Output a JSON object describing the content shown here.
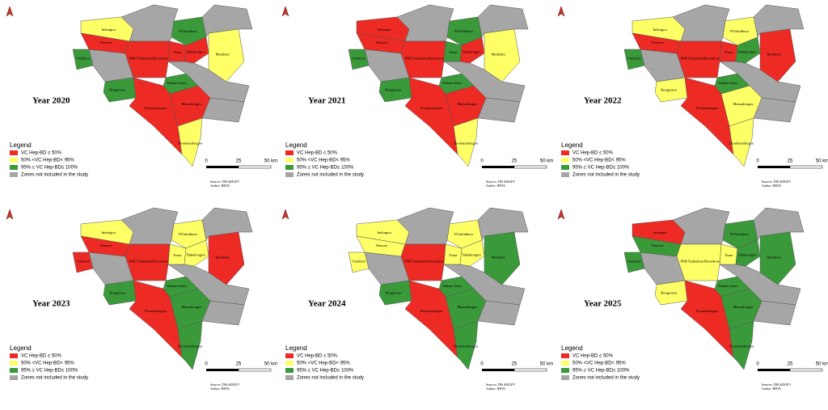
{
  "legend": {
    "title": "Legend",
    "items": [
      {
        "label": "VC Hep-BD ≤ 50%",
        "color": "#ee2a24"
      },
      {
        "label": "50% <VC Hep-BD< 95%",
        "color": "#ffff66"
      },
      {
        "label": "95% ≤ VC Hep-BD≤ 100%",
        "color": "#3a9a3a"
      },
      {
        "label": "Zones not included in the study",
        "color": "#a6a6a6"
      }
    ]
  },
  "scale": {
    "labels": [
      "0",
      "25",
      "50 km"
    ]
  },
  "source": {
    "lines": [
      "Sources: DIS &DGPV",
      "Author: HBTA"
    ]
  },
  "regions": [
    "Indougou",
    "Nassoro",
    "Ouéléssé",
    "N'Golokhoro",
    "Tiona",
    "Dakakougou",
    "Madinani",
    "PMI/Yankadine/Bourekore",
    "Bougousso",
    "Ndiana Sesso",
    "Fermandougou",
    "Massadougou",
    "Dioulatiedougou"
  ],
  "panels": [
    {
      "title": "Year 2020",
      "region_colors": [
        "#ffff66",
        "#ee2a24",
        "#3a9a3a",
        "#3a9a3a",
        "#ee2a24",
        "#ee2a24",
        "#ffff66",
        "#ee2a24",
        "#3a9a3a",
        "#3a9a3a",
        "#ee2a24",
        "#ee2a24",
        "#ffff66"
      ]
    },
    {
      "title": "Year 2021",
      "region_colors": [
        "#ee2a24",
        "#ee2a24",
        "#3a9a3a",
        "#3a9a3a",
        "#3a9a3a",
        "#ee2a24",
        "#ffff66",
        "#ee2a24",
        "#3a9a3a",
        "#3a9a3a",
        "#ee2a24",
        "#ee2a24",
        "#ffff66"
      ]
    },
    {
      "title": "Year 2022",
      "region_colors": [
        "#ffff66",
        "#ee2a24",
        "#3a9a3a",
        "#ffff66",
        "#ee2a24",
        "#3a9a3a",
        "#ee2a24",
        "#ee2a24",
        "#ffff66",
        "#3a9a3a",
        "#ee2a24",
        "#ffff66",
        "#ffff66"
      ]
    },
    {
      "title": "Year 2023",
      "region_colors": [
        "#ffff66",
        "#ee2a24",
        "#ee2a24",
        "#ffff66",
        "#ffff66",
        "#ffff66",
        "#ee2a24",
        "#ee2a24",
        "#3a9a3a",
        "#3a9a3a",
        "#ee2a24",
        "#3a9a3a",
        "#3a9a3a"
      ]
    },
    {
      "title": "Year 2024",
      "region_colors": [
        "#ffff66",
        "#ffff66",
        "#ffff66",
        "#ffff66",
        "#ffff66",
        "#ffff66",
        "#3a9a3a",
        "#ee2a24",
        "#3a9a3a",
        "#3a9a3a",
        "#ee2a24",
        "#3a9a3a",
        "#3a9a3a"
      ]
    },
    {
      "title": "Year 2025",
      "region_colors": [
        "#ee2a24",
        "#3a9a3a",
        "#3a9a3a",
        "#3a9a3a",
        "#ffff66",
        "#3a9a3a",
        "#3a9a3a",
        "#ffff66",
        "#ffff66",
        "#3a9a3a",
        "#ee2a24",
        "#3a9a3a",
        "#3a9a3a"
      ]
    }
  ]
}
